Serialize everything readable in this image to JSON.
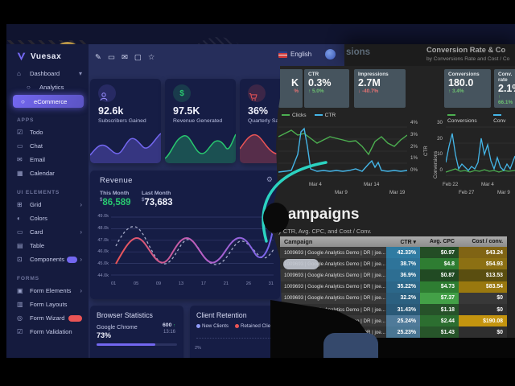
{
  "sidebar": {
    "logo_text": "Vuesax",
    "items": [
      {
        "type": "item",
        "icon": "home",
        "label": "Dashboard",
        "chevron": "▾"
      },
      {
        "type": "sub",
        "icon": "dot",
        "label": "Analytics"
      },
      {
        "type": "sub",
        "icon": "dot",
        "label": "eCommerce",
        "active": true
      },
      {
        "type": "header",
        "label": "APPS"
      },
      {
        "type": "item",
        "icon": "todo",
        "label": "Todo"
      },
      {
        "type": "item",
        "icon": "chat",
        "label": "Chat"
      },
      {
        "type": "item",
        "icon": "email",
        "label": "Email"
      },
      {
        "type": "item",
        "icon": "calendar",
        "label": "Calendar"
      },
      {
        "type": "header",
        "label": "UI ELEMENTS"
      },
      {
        "type": "item",
        "icon": "grid",
        "label": "Grid",
        "chevron": "›"
      },
      {
        "type": "item",
        "icon": "colors",
        "label": "Colors"
      },
      {
        "type": "item",
        "icon": "card",
        "label": "Card",
        "chevron": "›"
      },
      {
        "type": "item",
        "icon": "table",
        "label": "Table"
      },
      {
        "type": "item",
        "icon": "components",
        "label": "Components",
        "badge": "purple",
        "chevron": "›"
      },
      {
        "type": "header",
        "label": "FORMS"
      },
      {
        "type": "item",
        "icon": "form-elements",
        "label": "Form Elements",
        "chevron": "›"
      },
      {
        "type": "item",
        "icon": "form-layouts",
        "label": "Form Layouts"
      },
      {
        "type": "item",
        "icon": "form-wizard",
        "label": "Form Wizard",
        "badge": "red"
      },
      {
        "type": "item",
        "icon": "form-validation",
        "label": "Form Validation"
      }
    ]
  },
  "navbar": {
    "icons": [
      "compose",
      "chat",
      "mail",
      "bag",
      "star"
    ],
    "language": "English"
  },
  "stat_cards": [
    {
      "value": "92.6k",
      "label": "Subscribers Gained",
      "accent": "#7367f0"
    },
    {
      "value": "97.5K",
      "label": "Revenue Generated",
      "accent": "#28c76f"
    },
    {
      "value": "36%",
      "label": "Quarterly Sales",
      "accent": "#ea5455"
    }
  ],
  "revenue": {
    "title": "Revenue",
    "gear_icon": "⚙",
    "this_month_label": "This Month",
    "this_month_value": "86,589",
    "last_month_label": "Last Month",
    "last_month_value": "73,683",
    "currency": "$",
    "this_month_color": "#28c76f",
    "y_labels": [
      "49.0k",
      "48.0k",
      "47.0k",
      "46.0k",
      "45.0k",
      "44.0k"
    ],
    "x_labels": [
      "01",
      "05",
      "09",
      "13",
      "17",
      "21",
      "26",
      "31"
    ]
  },
  "browser_stats": {
    "title": "Browser Statistics",
    "browser": "Google Chrome",
    "percent": "73%",
    "metric": "600",
    "metric_arrow": "↑",
    "metric_sub": "13:16"
  },
  "client_retention": {
    "title": "Client Retention",
    "legend": [
      {
        "label": "New Clients",
        "color": "#8f9bf7"
      },
      {
        "label": "Retained Clients",
        "color": "#ea5455"
      }
    ],
    "axis_label": "2%"
  },
  "overlay": {
    "header": {
      "left_fragment": "sions",
      "right_title": "Conversion Rate & Co",
      "right_subtitle": "by Conversions Rate and Cost / Co"
    },
    "tiles": [
      {
        "partial": true,
        "label": "",
        "value": "K",
        "delta": "%",
        "dir": "down"
      },
      {
        "label": "CTR",
        "value": "0.3%",
        "delta": "↑ 5.0%",
        "dir": "up"
      },
      {
        "label": "Impressions",
        "value": "2.7M",
        "delta": "↓ -40.7%",
        "dir": "down"
      },
      {
        "label": "Conversions",
        "value": "180.0",
        "delta": "↑ 3.4%",
        "dir": "up"
      },
      {
        "label": "Conv. rate",
        "value": "2.1%",
        "delta": "↑ 66.1%",
        "dir": "up"
      }
    ],
    "chart_left": {
      "legend": [
        {
          "label": "Clicks",
          "color": "#4caf50"
        },
        {
          "label": "CTR",
          "color": "#45b6e8"
        }
      ],
      "y_labels": [
        "4%",
        "3%",
        "2%",
        "1%",
        "0%"
      ],
      "y_title": "CTR",
      "x_labels_row1": [
        "Mar 4",
        "Mar 14"
      ],
      "x_labels_row2": [
        "Mar 9",
        "Mar 19"
      ]
    },
    "chart_right": {
      "legend": [
        {
          "label": "Conversions",
          "color": "#4caf50"
        },
        {
          "label": "Conv",
          "color": "#45b6e8"
        }
      ],
      "y_labels": [
        "30",
        "20",
        "10",
        "0"
      ],
      "y_title": "Conversions",
      "x_labels_row1": [
        "Feb 22",
        "Mar 4"
      ],
      "x_labels_row2": [
        "Feb 27",
        "Mar 9"
      ]
    },
    "campaigns": {
      "title": "Campaigns",
      "subtitle": "by CTR, Avg. CPC, and Cost / Conv.",
      "sort_icon": "▾",
      "headers": [
        "Campaign",
        "CTR",
        "Avg. CPC",
        "Cost / conv."
      ],
      "rows": [
        {
          "campaign": "1009693 | Google Analytics Demo | DR | joe...",
          "ctr": "42.33%",
          "cpc": "$0.97",
          "cost": "$43.24",
          "ctr_bg": "#2f7ba2",
          "cpc_bg": "#234d25",
          "cost_bg": "#806414"
        },
        {
          "campaign": "1009693 | Google Analytics Demo | DR | joe...",
          "ctr": "38.7%",
          "cpc": "$4.8",
          "cost": "$54.93",
          "ctr_bg": "#2e749a",
          "cpc_bg": "#2e7d32",
          "cost_bg": "#8c7013"
        },
        {
          "campaign": "1009693 | Google Analytics Demo | DR | joe...",
          "ctr": "36.9%",
          "cpc": "$0.87",
          "cost": "$13.53",
          "ctr_bg": "#2d6e92",
          "cpc_bg": "#214a23",
          "cost_bg": "#5a4e10"
        },
        {
          "campaign": "1009693 | Google Analytics Demo | DR | joe...",
          "ctr": "35.22%",
          "cpc": "$4.73",
          "cost": "$83.54",
          "ctr_bg": "#2c6789",
          "cpc_bg": "#2e7d32",
          "cost_bg": "#99780f"
        },
        {
          "campaign": "1009693 | Google Analytics Demo | DR | joe...",
          "ctr": "32.2%",
          "cpc": "$7.37",
          "cost": "$0",
          "ctr_bg": "#2b6080",
          "cpc_bg": "#43a047",
          "cost_bg": ""
        },
        {
          "campaign": "1009693 | Google Analytics Demo | DR | joe...",
          "ctr": "31.43%",
          "cpc": "$1.18",
          "cost": "$0",
          "ctr_bg": "#2a5977",
          "cpc_bg": "#265229",
          "cost_bg": ""
        },
        {
          "campaign": "1009693 | Google Analytics Demo | DR | joe...",
          "ctr": "25.24%",
          "cpc": "$2.44",
          "cost": "$190.08",
          "ctr_bg": "#4f7a99",
          "cpc_bg": "#2c6e30",
          "cost_bg": "#c4940f"
        },
        {
          "campaign": "1009693 | Google Analytics Demo | DR | joe...",
          "ctr": "25.23%",
          "cpc": "$1.43",
          "cost": "$0",
          "ctr_bg": "#4a7693",
          "cpc_bg": "#27552a",
          "cost_bg": ""
        }
      ]
    }
  }
}
